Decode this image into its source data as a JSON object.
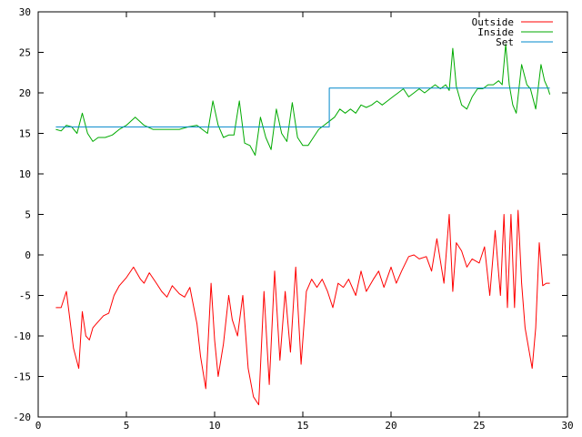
{
  "chart_data": {
    "type": "line",
    "title": "",
    "xlabel": "",
    "ylabel": "",
    "xlim": [
      0,
      30
    ],
    "ylim": [
      -20,
      30
    ],
    "x_ticks": [
      0,
      5,
      10,
      15,
      20,
      25,
      30
    ],
    "y_ticks": [
      -20,
      -15,
      -10,
      -5,
      0,
      5,
      10,
      15,
      20,
      25,
      30
    ],
    "grid": false,
    "legend_position": "top-right",
    "series": [
      {
        "name": "Outside",
        "color": "#ff0000",
        "x": [
          1.0,
          1.3,
          1.6,
          1.8,
          2.0,
          2.3,
          2.5,
          2.7,
          2.9,
          3.1,
          3.3,
          3.5,
          3.7,
          4.0,
          4.3,
          4.6,
          5.0,
          5.4,
          5.8,
          6.0,
          6.3,
          6.7,
          7.0,
          7.3,
          7.6,
          8.0,
          8.3,
          8.6,
          9.0,
          9.2,
          9.5,
          9.8,
          10.0,
          10.2,
          10.5,
          10.8,
          11.0,
          11.3,
          11.6,
          11.9,
          12.2,
          12.5,
          12.8,
          13.1,
          13.4,
          13.7,
          14.0,
          14.3,
          14.6,
          14.9,
          15.2,
          15.5,
          15.8,
          16.1,
          16.4,
          16.7,
          17.0,
          17.3,
          17.6,
          18.0,
          18.3,
          18.6,
          19.0,
          19.3,
          19.6,
          20.0,
          20.3,
          20.6,
          21.0,
          21.3,
          21.6,
          22.0,
          22.3,
          22.6,
          23.0,
          23.3,
          23.5,
          23.7,
          24.0,
          24.3,
          24.6,
          25.0,
          25.3,
          25.6,
          25.9,
          26.2,
          26.4,
          26.6,
          26.8,
          27.0,
          27.2,
          27.4,
          27.6,
          27.8,
          28.0,
          28.2,
          28.4,
          28.6,
          28.8,
          29.0
        ],
        "values": [
          -6.5,
          -6.5,
          -4.5,
          -8.0,
          -11.5,
          -14.0,
          -7.0,
          -10.0,
          -10.5,
          -9.0,
          -8.5,
          -8.0,
          -7.5,
          -7.2,
          -5.0,
          -3.8,
          -2.8,
          -1.5,
          -3.0,
          -3.5,
          -2.2,
          -3.5,
          -4.5,
          -5.2,
          -3.8,
          -4.8,
          -5.2,
          -4.0,
          -8.5,
          -12.5,
          -16.5,
          -3.5,
          -10.5,
          -15.0,
          -11.0,
          -5.0,
          -8.0,
          -10.0,
          -5.0,
          -14.0,
          -17.5,
          -18.5,
          -4.5,
          -16.0,
          -2.0,
          -13.0,
          -4.5,
          -12.0,
          -1.5,
          -13.5,
          -4.5,
          -3.0,
          -4.0,
          -3.0,
          -4.5,
          -6.5,
          -3.5,
          -4.0,
          -3.0,
          -5.0,
          -2.0,
          -4.5,
          -3.0,
          -2.0,
          -4.0,
          -1.5,
          -3.5,
          -2.0,
          -0.2,
          0.0,
          -0.5,
          -0.2,
          -2.0,
          2.0,
          -3.5,
          5.0,
          -4.5,
          1.5,
          0.5,
          -1.5,
          -0.5,
          -1.0,
          1.0,
          -5.0,
          3.0,
          -5.0,
          5.0,
          -6.5,
          5.0,
          -6.5,
          5.5,
          -3.5,
          -9.0,
          -11.5,
          -14.0,
          -9.0,
          1.5,
          -3.8,
          -3.5,
          -3.5
        ]
      },
      {
        "name": "Inside",
        "color": "#00aa00",
        "x": [
          1.0,
          1.3,
          1.6,
          1.9,
          2.2,
          2.5,
          2.8,
          3.1,
          3.4,
          3.8,
          4.2,
          4.6,
          5.0,
          5.5,
          6.0,
          6.5,
          7.0,
          7.5,
          8.0,
          8.5,
          9.0,
          9.3,
          9.6,
          9.9,
          10.2,
          10.5,
          10.8,
          11.1,
          11.4,
          11.7,
          12.0,
          12.3,
          12.6,
          12.9,
          13.2,
          13.5,
          13.8,
          14.1,
          14.4,
          14.7,
          15.0,
          15.3,
          15.6,
          15.9,
          16.2,
          16.5,
          16.8,
          17.1,
          17.4,
          17.7,
          18.0,
          18.3,
          18.6,
          18.9,
          19.2,
          19.5,
          19.8,
          20.1,
          20.4,
          20.7,
          21.0,
          21.3,
          21.6,
          21.9,
          22.2,
          22.5,
          22.8,
          23.1,
          23.3,
          23.5,
          23.7,
          24.0,
          24.3,
          24.6,
          24.9,
          25.2,
          25.5,
          25.8,
          26.1,
          26.3,
          26.5,
          26.7,
          26.9,
          27.1,
          27.4,
          27.7,
          27.9,
          28.2,
          28.5,
          28.7,
          28.9,
          29.0
        ],
        "values": [
          15.5,
          15.3,
          16.0,
          15.8,
          15.0,
          17.5,
          15.0,
          14.0,
          14.5,
          14.5,
          14.8,
          15.5,
          16.0,
          17.0,
          16.0,
          15.5,
          15.5,
          15.5,
          15.5,
          15.8,
          16.0,
          15.5,
          15.0,
          19.0,
          16.0,
          14.5,
          14.8,
          14.8,
          19.0,
          13.8,
          13.5,
          12.3,
          17.0,
          14.5,
          13.0,
          18.0,
          15.0,
          14.0,
          18.8,
          14.5,
          13.5,
          13.5,
          14.5,
          15.5,
          16.0,
          16.5,
          17.0,
          18.0,
          17.5,
          18.0,
          17.5,
          18.5,
          18.2,
          18.5,
          19.0,
          18.5,
          19.0,
          19.5,
          20.0,
          20.5,
          19.5,
          20.0,
          20.5,
          20.0,
          20.5,
          21.0,
          20.5,
          21.0,
          20.3,
          25.5,
          20.8,
          18.5,
          18.0,
          19.5,
          20.5,
          20.5,
          21.0,
          21.0,
          21.5,
          21.0,
          26.0,
          21.0,
          18.5,
          17.5,
          23.5,
          21.0,
          20.5,
          18.0,
          23.5,
          21.5,
          20.5,
          19.8
        ]
      },
      {
        "name": "Set",
        "color": "#0088cc",
        "x": [
          1.0,
          16.5,
          16.5,
          29.0
        ],
        "values": [
          15.8,
          15.8,
          20.6,
          20.6
        ]
      }
    ]
  }
}
